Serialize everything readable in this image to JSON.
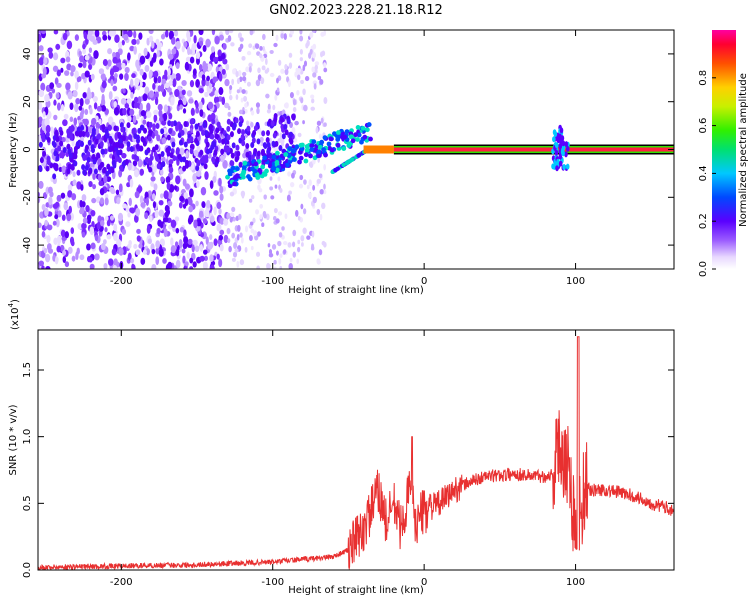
{
  "title": "GN02.2023.228.21.18.R12",
  "colors": {
    "snr_line": "#e83030",
    "center_band_dark": "#000000"
  },
  "colorbar": {
    "label": "Normalized spectral amplitude",
    "ticks": [
      "0.0",
      "0.2",
      "0.4",
      "0.6",
      "0.8"
    ],
    "tick_values": [
      0.0,
      0.2,
      0.4,
      0.6,
      0.8
    ],
    "range": [
      0,
      1
    ]
  },
  "chart_data": [
    {
      "type": "heatmap",
      "xlabel": "Height of straight line (km)",
      "ylabel": "Frequency (Hz)",
      "xlim": [
        -255,
        165
      ],
      "ylim": [
        -50,
        50
      ],
      "xticks": [
        -200,
        -100,
        0,
        100
      ],
      "xtick_labels": [
        "-200",
        "-100",
        "0",
        "100"
      ],
      "yticks": [
        -40,
        -20,
        0,
        20,
        40
      ],
      "ytick_labels": [
        "-40",
        "-20",
        "0",
        "20",
        "40"
      ],
      "features": [
        {
          "x": [
            -255,
            -130
          ],
          "y": [
            -50,
            50
          ],
          "amplitude": 0.25,
          "pattern": "dense scatter"
        },
        {
          "x": [
            -130,
            -65
          ],
          "y": [
            -50,
            50
          ],
          "amplitude": 0.1,
          "pattern": "sparse scatter"
        },
        {
          "x": [
            -130,
            -35
          ],
          "y_start": -12,
          "y_end": 8,
          "amplitude": 0.4,
          "pattern": "rising streak"
        },
        {
          "x": [
            -20,
            165
          ],
          "y": [
            0,
            0
          ],
          "amplitude": 0.95,
          "pattern": "narrow band at 0 Hz"
        },
        {
          "x": [
            85,
            95
          ],
          "y": [
            -8,
            10
          ],
          "amplitude": 0.5,
          "pattern": "burst"
        }
      ]
    },
    {
      "type": "line",
      "xlabel": "Height of straight line (km)",
      "ylabel": "SNR (10 * v/v)",
      "yscale_label": "(x10",
      "yscale_exp": "4",
      "yscale_close": ")",
      "xlim": [
        -255,
        165
      ],
      "ylim": [
        0,
        1.8
      ],
      "xticks": [
        -200,
        -100,
        0,
        100
      ],
      "xtick_labels": [
        "-200",
        "-100",
        "0",
        "100"
      ],
      "yticks": [
        0.0,
        0.5,
        1.0,
        1.5
      ],
      "ytick_labels": [
        "0.0",
        "0.5",
        "1.0",
        "1.5"
      ],
      "x": [
        -255,
        -200,
        -150,
        -100,
        -80,
        -60,
        -50,
        -40,
        -35,
        -30,
        -25,
        -20,
        -15,
        -10,
        -5,
        0,
        10,
        20,
        30,
        40,
        50,
        60,
        70,
        80,
        85,
        90,
        95,
        98,
        100,
        103,
        106,
        110,
        120,
        130,
        140,
        150,
        165
      ],
      "values": [
        0.02,
        0.03,
        0.04,
        0.06,
        0.08,
        0.1,
        0.15,
        0.3,
        0.45,
        0.6,
        0.35,
        0.5,
        0.3,
        0.6,
        0.35,
        0.45,
        0.5,
        0.6,
        0.66,
        0.7,
        0.71,
        0.72,
        0.71,
        0.7,
        0.72,
        0.95,
        0.8,
        0.5,
        0.35,
        0.45,
        0.62,
        0.6,
        0.6,
        0.58,
        0.55,
        0.5,
        0.45
      ]
    }
  ]
}
